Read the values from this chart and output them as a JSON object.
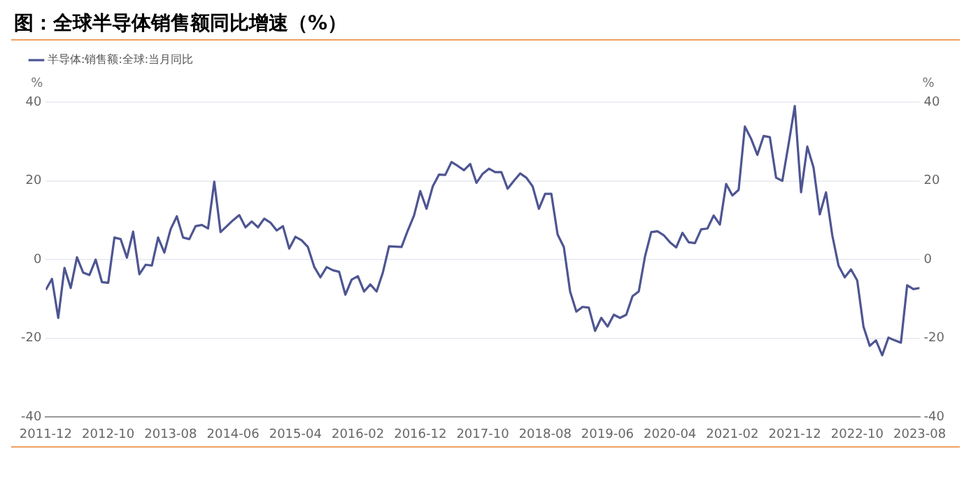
{
  "chart_data": {
    "type": "line",
    "title": "图：全球半导体销售额同比增速（%）",
    "ylabel": "%",
    "y2label": "%",
    "x": [
      "2011-12",
      "2012-01",
      "2012-02",
      "2012-03",
      "2012-04",
      "2012-05",
      "2012-06",
      "2012-07",
      "2012-08",
      "2012-09",
      "2012-10",
      "2012-11",
      "2012-12",
      "2013-01",
      "2013-02",
      "2013-03",
      "2013-04",
      "2013-05",
      "2013-06",
      "2013-07",
      "2013-08",
      "2013-09",
      "2013-10",
      "2013-11",
      "2013-12",
      "2014-01",
      "2014-02",
      "2014-03",
      "2014-04",
      "2014-05",
      "2014-06",
      "2014-07",
      "2014-08",
      "2014-09",
      "2014-10",
      "2014-11",
      "2014-12",
      "2015-01",
      "2015-02",
      "2015-03",
      "2015-04",
      "2015-05",
      "2015-06",
      "2015-07",
      "2015-08",
      "2015-09",
      "2015-10",
      "2015-11",
      "2015-12",
      "2016-01",
      "2016-02",
      "2016-03",
      "2016-04",
      "2016-05",
      "2016-06",
      "2016-07",
      "2016-08",
      "2016-09",
      "2016-10",
      "2016-11",
      "2016-12",
      "2017-01",
      "2017-02",
      "2017-03",
      "2017-04",
      "2017-05",
      "2017-06",
      "2017-07",
      "2017-08",
      "2017-09",
      "2017-10",
      "2017-11",
      "2017-12",
      "2018-01",
      "2018-02",
      "2018-03",
      "2018-04",
      "2018-05",
      "2018-06",
      "2018-07",
      "2018-08",
      "2018-09",
      "2018-10",
      "2018-11",
      "2018-12",
      "2019-01",
      "2019-02",
      "2019-03",
      "2019-04",
      "2019-05",
      "2019-06",
      "2019-07",
      "2019-08",
      "2019-09",
      "2019-10",
      "2019-11",
      "2019-12",
      "2020-01",
      "2020-02",
      "2020-03",
      "2020-04",
      "2020-05",
      "2020-06",
      "2020-07",
      "2020-08",
      "2020-09",
      "2020-10",
      "2020-11",
      "2020-12",
      "2021-01",
      "2021-02",
      "2021-03",
      "2021-04",
      "2021-05",
      "2021-06",
      "2021-07",
      "2021-08",
      "2021-09",
      "2021-10",
      "2021-11",
      "2021-12",
      "2022-01",
      "2022-02",
      "2022-03",
      "2022-04",
      "2022-05",
      "2022-06",
      "2022-07",
      "2022-08",
      "2022-09",
      "2022-10",
      "2022-11",
      "2022-12",
      "2023-01",
      "2023-02",
      "2023-03",
      "2023-04",
      "2023-05",
      "2023-06",
      "2023-07",
      "2023-08"
    ],
    "series": [
      {
        "name": "半导体:销售额:全球:当月同比",
        "color": "#4e5592",
        "values": [
          -7.7,
          -4.9,
          -14.8,
          -2.1,
          -7.2,
          0.6,
          -3.3,
          -3.9,
          0,
          -5.7,
          -5.9,
          5.6,
          5.2,
          0.5,
          7.1,
          -3.7,
          -1.3,
          -1.5,
          5.6,
          1.8,
          7.7,
          11,
          5.6,
          5.2,
          8.5,
          8.8,
          7.9,
          19.8,
          7,
          8.5,
          10,
          11.3,
          8.2,
          9.7,
          8.2,
          10.4,
          9.4,
          7.4,
          8.5,
          2.8,
          5.8,
          4.9,
          3.2,
          -1.8,
          -4.5,
          -1.9,
          -2.7,
          -3.1,
          -8.9,
          -5.1,
          -4.2,
          -8.1,
          -6.3,
          -8.1,
          -3.3,
          3.4,
          3.3,
          3.2,
          7.4,
          11.2,
          17.4,
          12.9,
          18.6,
          21.6,
          21.5,
          24.8,
          23.8,
          22.7,
          24.3,
          19.5,
          21.8,
          23.1,
          22.2,
          22.2,
          18,
          20,
          21.9,
          20.8,
          18.6,
          12.9,
          16.7,
          16.7,
          6.4,
          3.2,
          -8.1,
          -13.2,
          -12,
          -12.2,
          -18.1,
          -14.8,
          -17,
          -14,
          -14.8,
          -14,
          -9.3,
          -8.1,
          0.8,
          7,
          7.2,
          6.2,
          4.4,
          3.1,
          6.8,
          4.4,
          4.2,
          7.7,
          7.9,
          11.2,
          8.9,
          19.2,
          16.3,
          17.7,
          33.8,
          30.7,
          26.6,
          31.4,
          31.1,
          20.8,
          20,
          29.3,
          39,
          17.1,
          28.7,
          23.4,
          11.5,
          17.1,
          6.2,
          -1.5,
          -4.5,
          -2.5,
          -5.3,
          -17,
          -21.9,
          -20.5,
          -24.3,
          -19.8,
          -20.5,
          -21.1,
          -6.5,
          -7.5,
          -7.2
        ]
      }
    ],
    "xlim": [
      "2011-12",
      "2023-08"
    ],
    "xticks": [
      "2011-12",
      "2012-10",
      "2013-08",
      "2014-06",
      "2015-04",
      "2016-02",
      "2016-12",
      "2017-10",
      "2018-08",
      "2019-06",
      "2020-04",
      "2021-02",
      "2021-12",
      "2022-10",
      "2023-08"
    ],
    "ylim": [
      -40,
      40
    ],
    "yticks": [
      -40,
      -20,
      0,
      20,
      40
    ],
    "y2lim": [
      -40,
      40
    ],
    "y2ticks": [
      -40,
      -20,
      0,
      20,
      40
    ],
    "grid": "y",
    "legend": "top left",
    "marker": "none",
    "line_style": "solid"
  }
}
